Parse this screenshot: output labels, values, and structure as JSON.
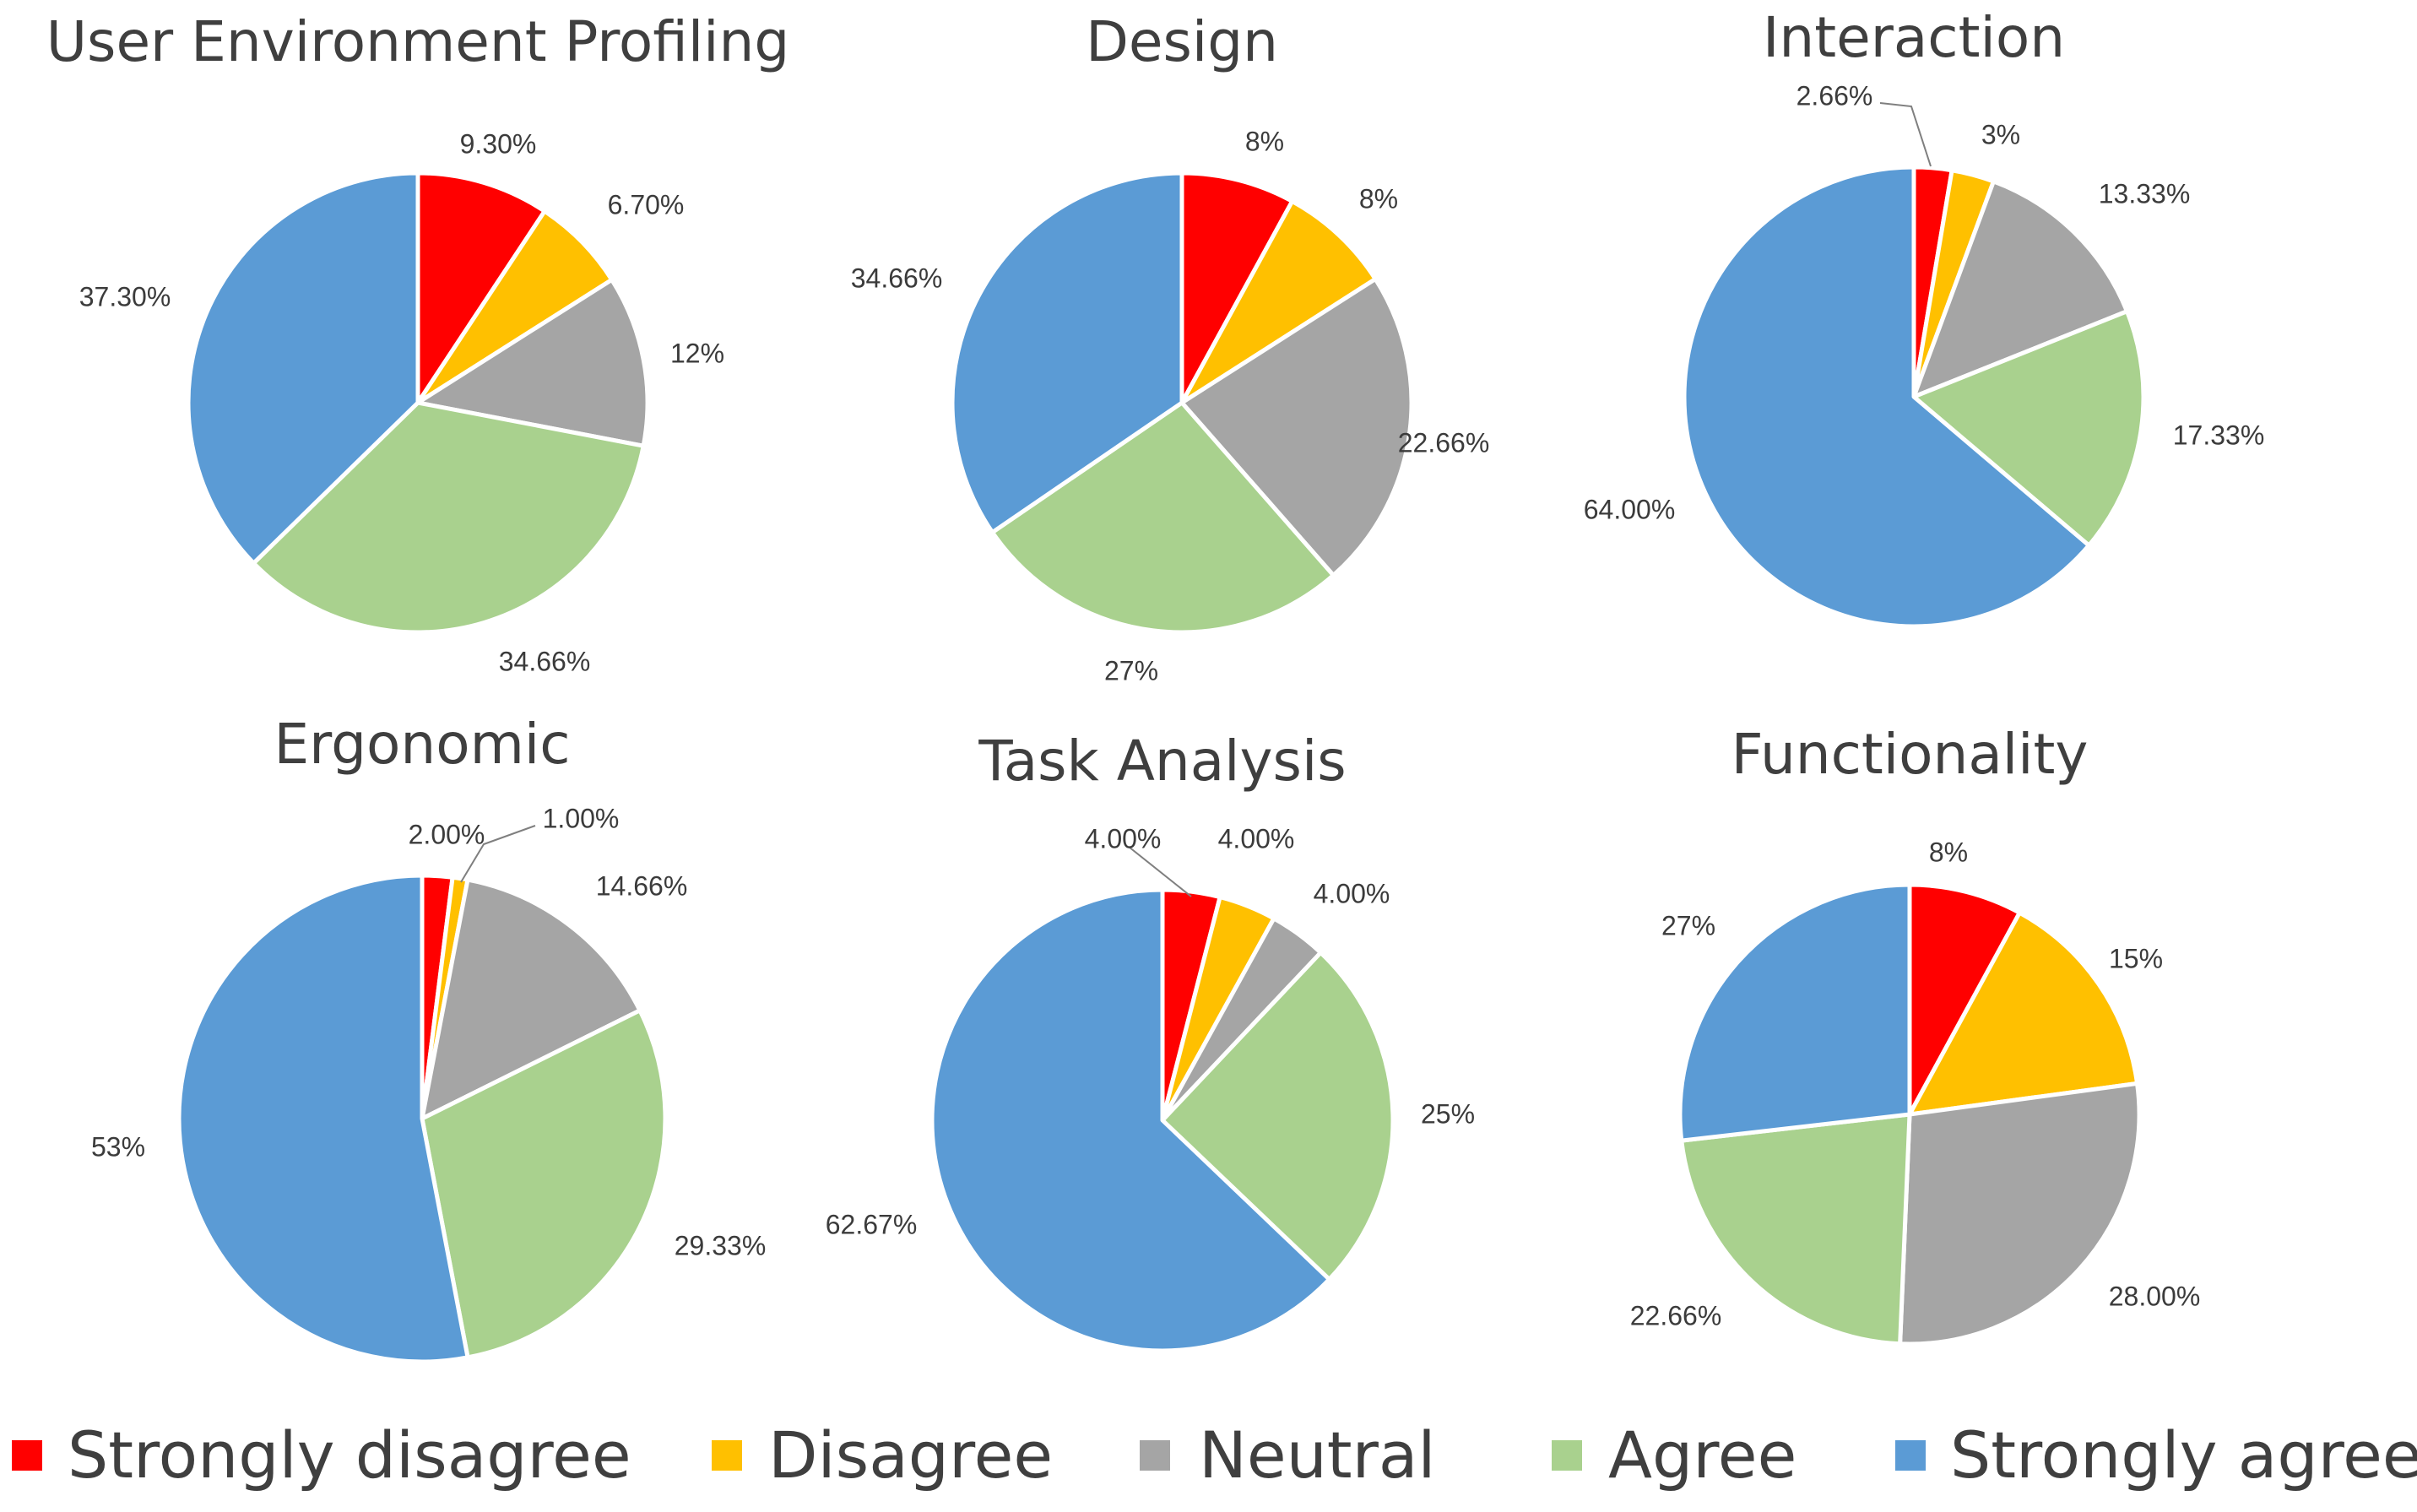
{
  "colors": {
    "strongly_disagree": "#ff0000",
    "disagree": "#ffc000",
    "neutral": "#a5a5a5",
    "agree": "#a9d18e",
    "strongly_agree": "#5b9bd5"
  },
  "legend": [
    {
      "key": "strongly_disagree",
      "label": "Strongly disagree"
    },
    {
      "key": "disagree",
      "label": "Disagree"
    },
    {
      "key": "neutral",
      "label": "Neutral"
    },
    {
      "key": "agree",
      "label": "Agree"
    },
    {
      "key": "strongly_agree",
      "label": "Strongly agree"
    }
  ],
  "chart_data": [
    {
      "type": "pie",
      "title": "User Environment Profiling",
      "categories": [
        "Strongly disagree",
        "Disagree",
        "Neutral",
        "Agree",
        "Strongly agree"
      ],
      "values": [
        9.3,
        6.7,
        12,
        34.66,
        37.3
      ],
      "labels": [
        "9.30%",
        "6.70%",
        "12%",
        "34.66%",
        "37.30%"
      ]
    },
    {
      "type": "pie",
      "title": "Design",
      "categories": [
        "Strongly disagree",
        "Disagree",
        "Neutral",
        "Agree",
        "Strongly agree"
      ],
      "values": [
        8,
        8,
        22.66,
        27,
        34.66
      ],
      "labels": [
        "8%",
        "8%",
        "22.66%",
        "27%",
        "34.66%"
      ]
    },
    {
      "type": "pie",
      "title": "Interaction",
      "categories": [
        "Strongly disagree",
        "Disagree",
        "Neutral",
        "Agree",
        "Strongly agree"
      ],
      "values": [
        2.66,
        3,
        13.33,
        17.33,
        64.0
      ],
      "labels": [
        "2.66%",
        "3%",
        "13.33%",
        "17.33%",
        "64.00%"
      ]
    },
    {
      "type": "pie",
      "title": "Ergonomic",
      "categories": [
        "Strongly disagree",
        "Disagree",
        "Neutral",
        "Agree",
        "Strongly agree"
      ],
      "values": [
        2.0,
        1.0,
        14.66,
        29.33,
        53
      ],
      "labels": [
        "2.00%",
        "1.00%",
        "14.66%",
        "29.33%",
        "53%"
      ]
    },
    {
      "type": "pie",
      "title": "Task Analysis",
      "categories": [
        "Strongly disagree",
        "Disagree",
        "Neutral",
        "Agree",
        "Strongly agree"
      ],
      "values": [
        4.0,
        4.0,
        4.0,
        25,
        62.67
      ],
      "labels": [
        "4.00%",
        "4.00%",
        "4.00%",
        "25%",
        "62.67%"
      ]
    },
    {
      "type": "pie",
      "title": "Functionality",
      "categories": [
        "Strongly disagree",
        "Disagree",
        "Neutral",
        "Agree",
        "Strongly agree"
      ],
      "values": [
        8,
        15,
        28.0,
        22.66,
        27
      ],
      "labels": [
        "8%",
        "15%",
        "28.00%",
        "22.66%",
        "27%"
      ]
    }
  ]
}
